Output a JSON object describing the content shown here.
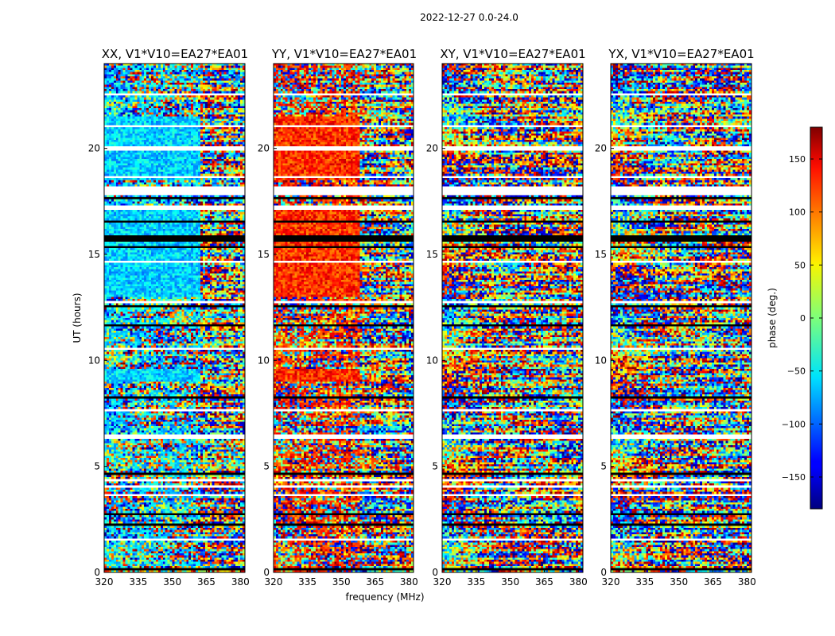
{
  "chart_data": {
    "type": "heatmap",
    "suptitle": "2022-12-27 0.0-24.0",
    "xlabel": "frequency (MHz)",
    "ylabel": "UT (hours)",
    "xlim": [
      320,
      382
    ],
    "ylim": [
      0,
      24
    ],
    "xticks": [
      "320",
      "335",
      "350",
      "365",
      "380"
    ],
    "yticks": [
      "0",
      "5",
      "10",
      "15",
      "20"
    ],
    "xtick_values": [
      320,
      335,
      350,
      365,
      380
    ],
    "ytick_values": [
      0,
      5,
      10,
      15,
      20
    ],
    "colorbar": {
      "label": "phase (deg.)",
      "range": [
        -180,
        180
      ],
      "ticks": [
        "150",
        "100",
        "50",
        "0",
        "−50",
        "−100",
        "−150"
      ],
      "tick_values": [
        150,
        100,
        50,
        0,
        -50,
        -100,
        -150
      ],
      "colormap": "jet"
    },
    "panels": [
      {
        "title": "XX, V1*V10=EA27*EA01",
        "dominant_phase": -60,
        "coherent_until_mhz": 362
      },
      {
        "title": "YY, V1*V10=EA27*EA01",
        "dominant_phase": 120,
        "coherent_until_mhz": 358
      },
      {
        "title": "XY, V1*V10=EA27*EA01",
        "dominant_phase": null,
        "coherent_until_mhz": 320
      },
      {
        "title": "YX, V1*V10=EA27*EA01",
        "dominant_phase": null,
        "coherent_until_mhz": 320
      }
    ],
    "flagged_hours_black": [
      [
        15.6,
        15.9
      ]
    ],
    "flagged_hours_white": [
      [
        1.5,
        1.6
      ],
      [
        3.6,
        3.7
      ],
      [
        4.0,
        4.1
      ],
      [
        4.3,
        4.4
      ],
      [
        6.3,
        6.5
      ],
      [
        7.6,
        7.7
      ],
      [
        10.5,
        10.6
      ],
      [
        12.7,
        12.8
      ],
      [
        14.6,
        14.7
      ],
      [
        17.1,
        17.3
      ],
      [
        17.8,
        18.2
      ],
      [
        18.6,
        18.7
      ],
      [
        19.9,
        20.1
      ],
      [
        21.0,
        21.1
      ],
      [
        22.5,
        22.6
      ]
    ]
  }
}
